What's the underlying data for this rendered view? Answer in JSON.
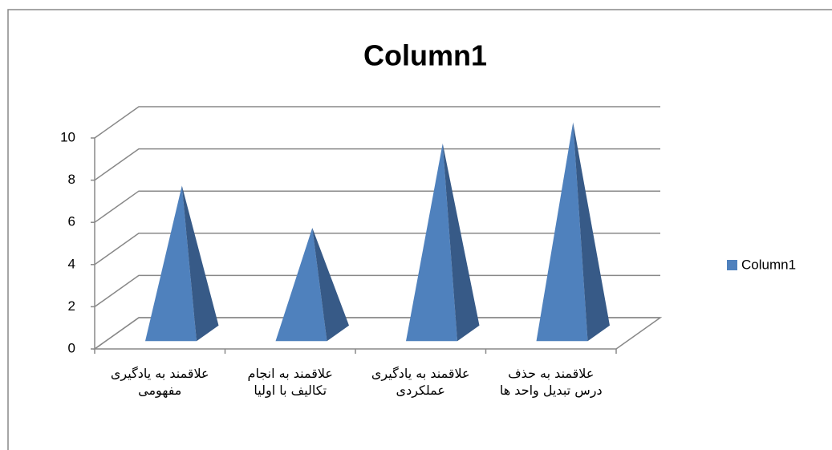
{
  "chart_data": {
    "type": "pyramid3d",
    "title": "Column1",
    "categories": [
      "علاقمند به یادگیری مفهومی",
      "علاقمند به انجام تکالیف با اولیا",
      "علاقمند به یادگیری عملکردی",
      "علاقمند به حذف درس تبدیل واحد ها"
    ],
    "series": [
      {
        "name": "Column1",
        "color": "#4f81bd",
        "values": [
          7,
          5,
          9,
          10
        ]
      }
    ],
    "ylim": [
      0,
      10
    ],
    "yticks": [
      0,
      2,
      4,
      6,
      8,
      10
    ],
    "grid": true,
    "legend": "right"
  }
}
